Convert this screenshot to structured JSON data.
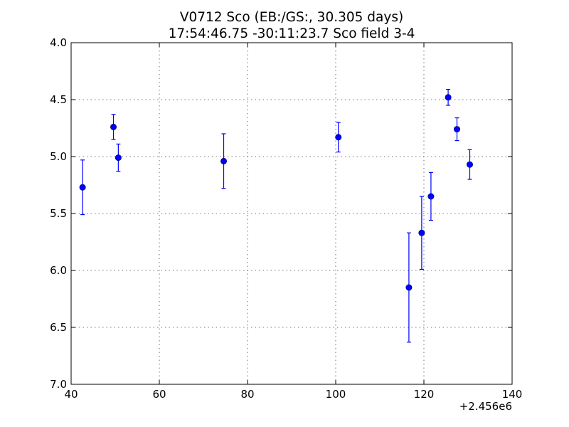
{
  "chart_data": {
    "type": "scatter",
    "title_line1": "V0712 Sco (EB:/GS:, 30.305 days)",
    "title_line2": "17:54:46.75 -30:11:23.7 Sco field 3-4",
    "xlabel": "",
    "ylabel": "",
    "x_offset_label": "+2.456e6",
    "xlim": [
      40,
      140
    ],
    "ylim": [
      4.0,
      7.0
    ],
    "y_inverted": true,
    "grid": true,
    "x_ticks": [
      40,
      60,
      80,
      100,
      120,
      140
    ],
    "x_tick_labels": [
      "40",
      "60",
      "80",
      "100",
      "120",
      "140"
    ],
    "y_ticks": [
      4.0,
      4.5,
      5.0,
      5.5,
      6.0,
      6.5,
      7.0
    ],
    "y_tick_labels": [
      "4.0",
      "4.5",
      "5.0",
      "5.5",
      "6.0",
      "6.5",
      "7.0"
    ],
    "marker_color": "#0000ff",
    "points": [
      {
        "x": 42.6,
        "y": 5.27,
        "err": 0.24
      },
      {
        "x": 49.6,
        "y": 4.74,
        "err": 0.11
      },
      {
        "x": 50.7,
        "y": 5.01,
        "err": 0.12
      },
      {
        "x": 74.6,
        "y": 5.04,
        "err": 0.24
      },
      {
        "x": 100.6,
        "y": 4.83,
        "err": 0.13
      },
      {
        "x": 116.6,
        "y": 6.15,
        "err": 0.48
      },
      {
        "x": 119.5,
        "y": 5.67,
        "err": 0.32
      },
      {
        "x": 121.6,
        "y": 5.35,
        "err": 0.21
      },
      {
        "x": 125.5,
        "y": 4.48,
        "err": 0.07
      },
      {
        "x": 127.5,
        "y": 4.76,
        "err": 0.1
      },
      {
        "x": 130.4,
        "y": 5.07,
        "err": 0.13
      }
    ]
  }
}
